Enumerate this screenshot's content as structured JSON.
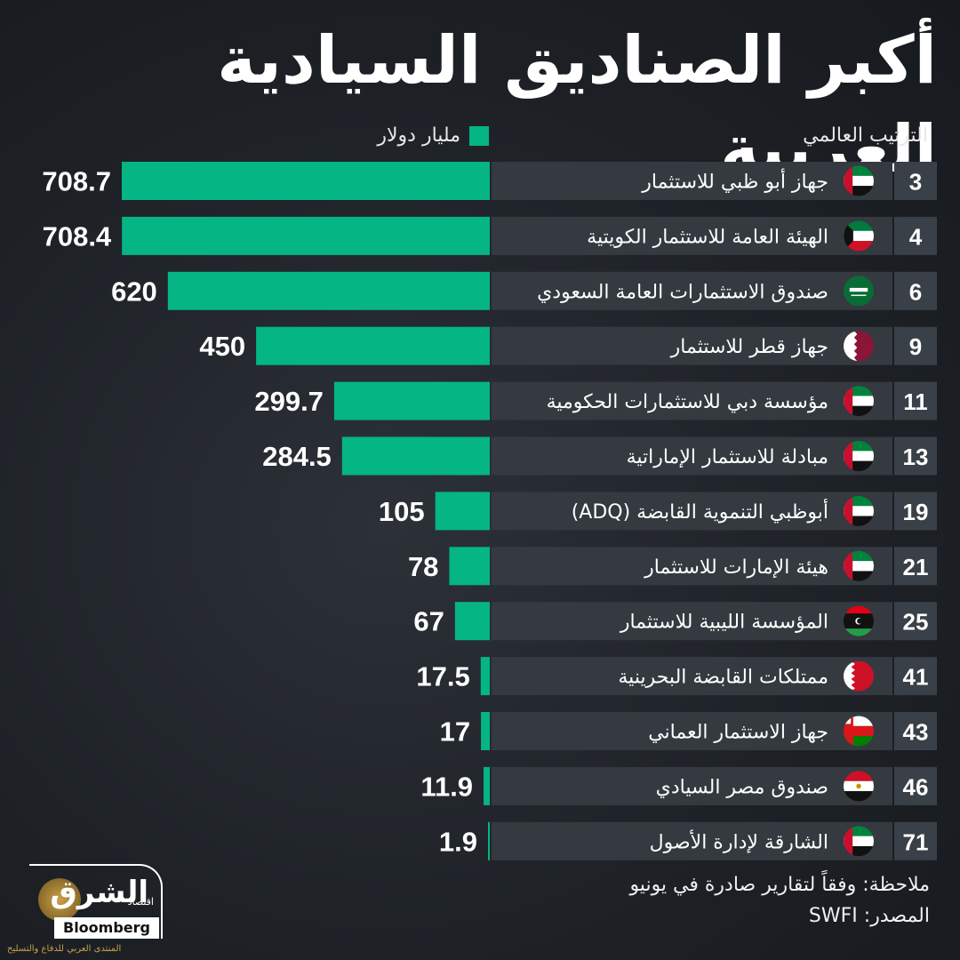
{
  "title": "أكبر الصناديق السيادية العربية",
  "rank_header": "الترتيب العالمي",
  "legend_label": "مليار دولار",
  "note": "ملاحظة: وفقاً لتقارير صادرة في يونيو",
  "source": "المصدر: SWFI",
  "logo": {
    "main": "الشرق",
    "sub": "اقتصاد",
    "bloomberg": "Bloomberg",
    "watermark": "المنتدى العربي للدفاع والتسليح"
  },
  "colors": {
    "bar": "#05b584",
    "rank_box": "#3a4047",
    "name_box": "#343a40"
  },
  "chart_data": {
    "type": "bar",
    "orientation": "horizontal",
    "categories": [
      "جهاز أبو ظبي للاستثمار",
      "الهيئة العامة للاستثمار الكويتية",
      "صندوق الاستثمارات العامة السعودي",
      "جهاز قطر للاستثمار",
      "مؤسسة دبي للاستثمارات الحكومية",
      "مبادلة للاستثمار الإماراتية",
      "أبوظبي التنموية القابضة (ADQ)",
      "هيئة الإمارات للاستثمار",
      "المؤسسة الليبية للاستثمار",
      "ممتلكات القابضة البحرينية",
      "جهاز الاستثمار العماني",
      "صندوق مصر السيادي",
      "الشارقة لإدارة الأصول"
    ],
    "ranks": [
      "3",
      "4",
      "6",
      "9",
      "11",
      "13",
      "19",
      "21",
      "25",
      "41",
      "43",
      "46",
      "71"
    ],
    "values": [
      708.7,
      708.4,
      620,
      450,
      299.7,
      284.5,
      105,
      78,
      67,
      17.5,
      17,
      11.9,
      1.9
    ],
    "value_labels": [
      "708.7",
      "708.4",
      "620",
      "450",
      "299.7",
      "284.5",
      "105",
      "78",
      "67",
      "17.5",
      "17",
      "11.9",
      "1.9"
    ],
    "flags": [
      "uae",
      "kuwait",
      "saudi",
      "qatar",
      "uae",
      "uae",
      "uae",
      "uae",
      "libya",
      "bahrain",
      "oman",
      "egypt",
      "uae"
    ],
    "xlim": [
      0,
      708.7
    ]
  }
}
